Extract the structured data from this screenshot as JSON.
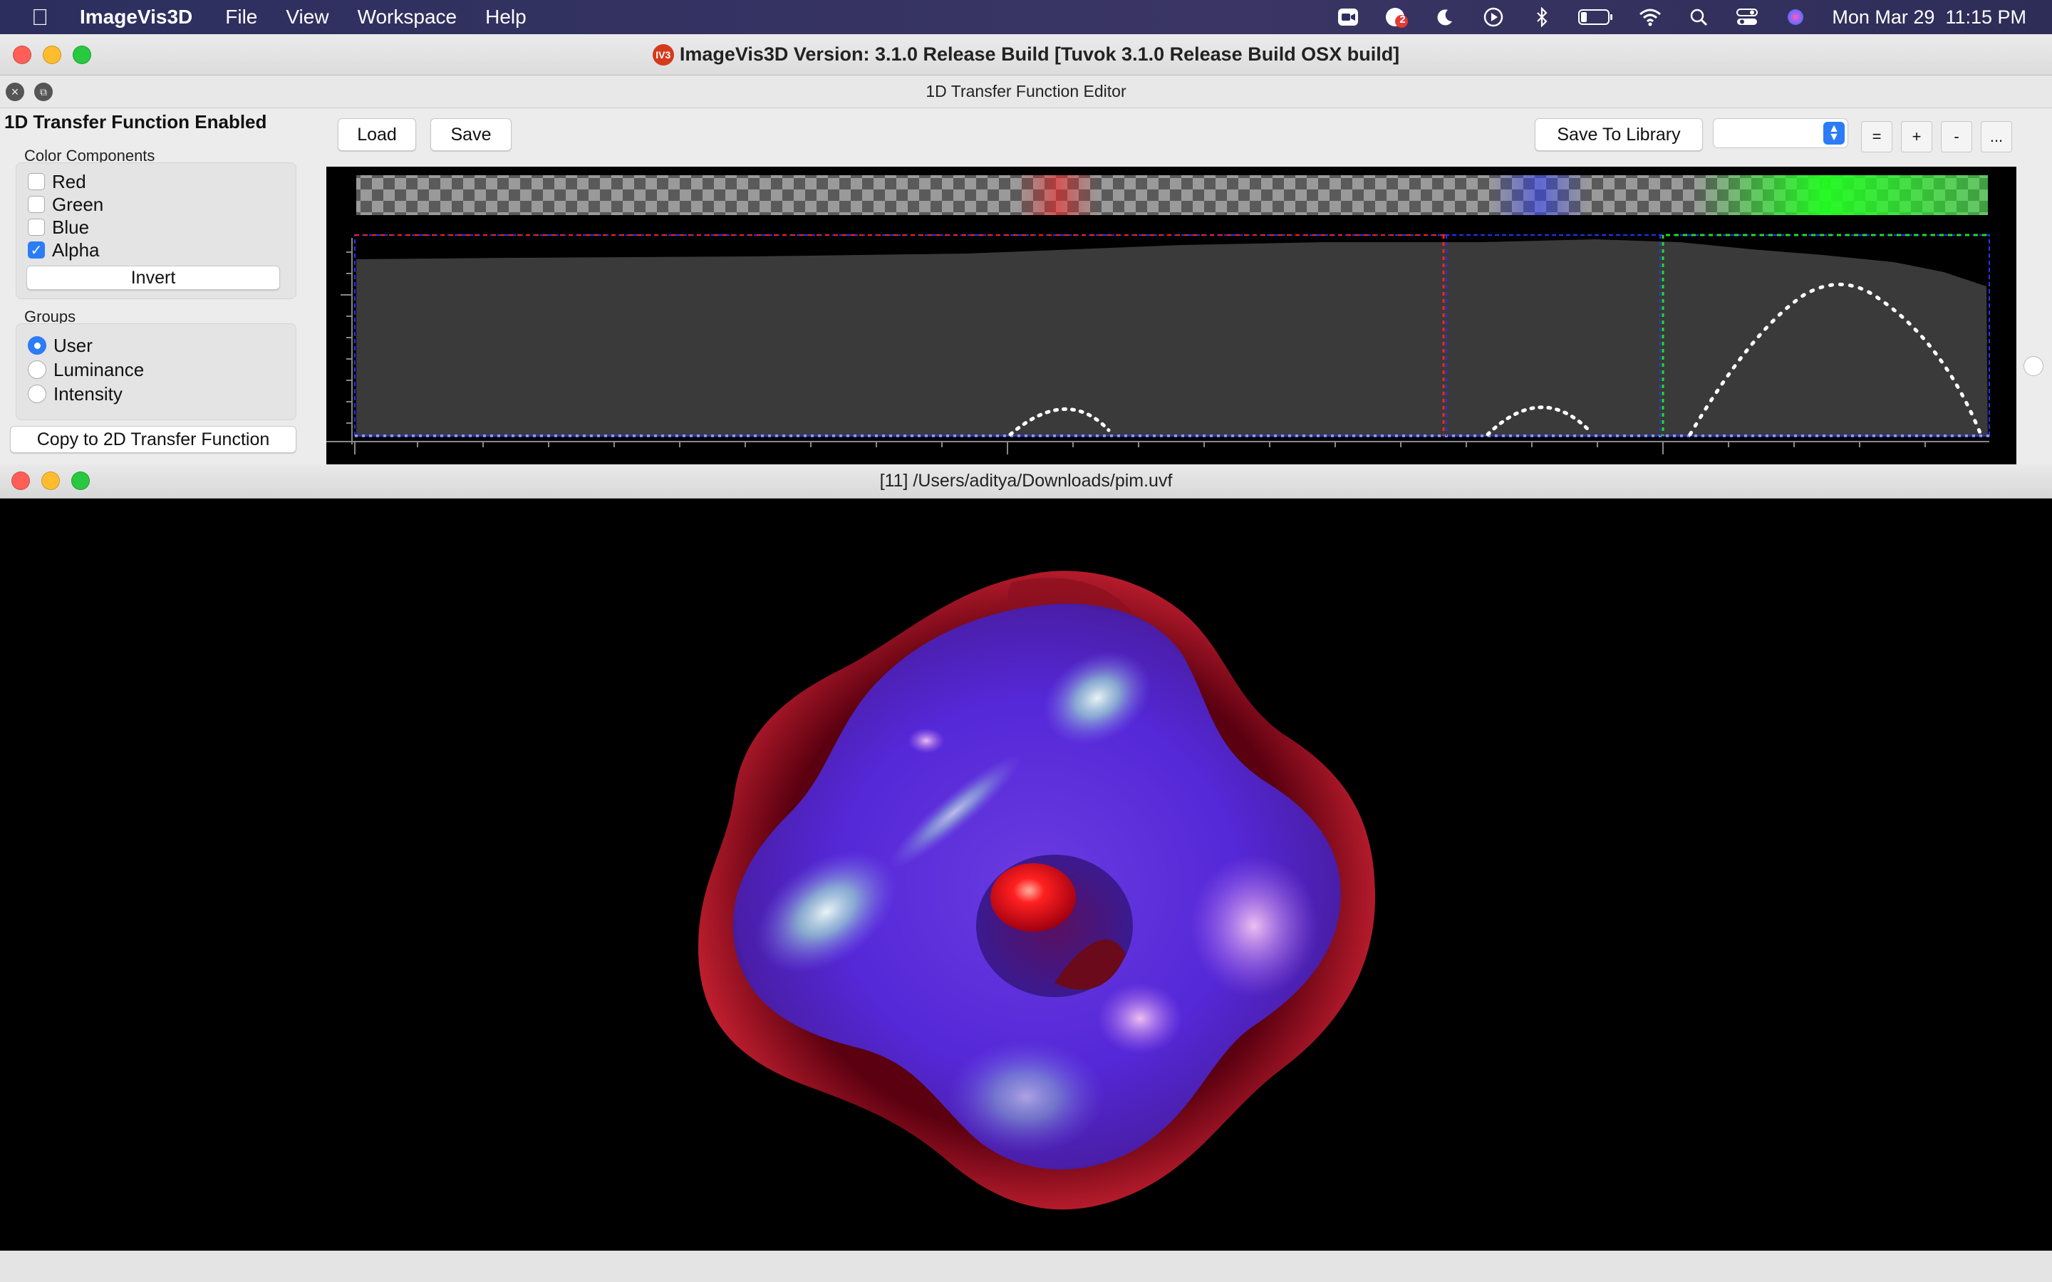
{
  "menubar": {
    "app_name": "ImageVis3D",
    "items": [
      "File",
      "View",
      "Workspace",
      "Help"
    ],
    "clock": "Mon Mar 29  11:15 PM",
    "notification_count": "2"
  },
  "window": {
    "title": "ImageVis3D Version: 3.1.0 Release Build [Tuvok 3.1.0 Release Build OSX build]",
    "logo_text": "IV3"
  },
  "editor": {
    "panel_title": "1D Transfer Function Editor",
    "enabled_label": "1D Transfer Function Enabled",
    "color_components_title": "Color Components",
    "components": [
      {
        "label": "Red",
        "checked": false
      },
      {
        "label": "Green",
        "checked": false
      },
      {
        "label": "Blue",
        "checked": false
      },
      {
        "label": "Alpha",
        "checked": true
      }
    ],
    "invert_label": "Invert",
    "groups_title": "Groups",
    "groups": [
      {
        "label": "User",
        "selected": true
      },
      {
        "label": "Luminance",
        "selected": false
      },
      {
        "label": "Intensity",
        "selected": false
      }
    ],
    "copy_label": "Copy to 2D Transfer Function",
    "load_label": "Load",
    "save_label": "Save",
    "save_library_label": "Save To Library",
    "library_selected": "",
    "btn_equal": "=",
    "btn_plus": "+",
    "btn_minus": "-",
    "btn_more": "..."
  },
  "render": {
    "title": "[11] /Users/aditya/Downloads/pim.uvf"
  },
  "colors": {
    "accent": "#2b7cf6",
    "histogram": "#3a3a3a",
    "tf_red": "#ff3030",
    "tf_green": "#22dd22",
    "tf_blue": "#3344ff"
  }
}
